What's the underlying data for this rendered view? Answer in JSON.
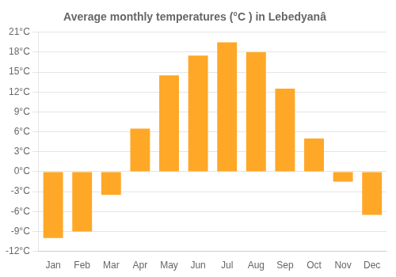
{
  "chart_data": {
    "type": "bar",
    "title": "Average monthly temperatures (°C ) in Lebedyanâ",
    "categories": [
      "Jan",
      "Feb",
      "Mar",
      "Apr",
      "May",
      "Jun",
      "Jul",
      "Aug",
      "Sep",
      "Oct",
      "Nov",
      "Dec"
    ],
    "values": [
      -10,
      -9,
      -3.5,
      6.5,
      14.5,
      17.5,
      19.5,
      18,
      12.5,
      5,
      -1.5,
      -6.5
    ],
    "color": "#FFA726",
    "ylim": [
      -12,
      21
    ],
    "yticks": [
      {
        "value": -12,
        "label": "-12°C"
      },
      {
        "value": -9,
        "label": "-9°C"
      },
      {
        "value": -6,
        "label": "-6°C"
      },
      {
        "value": -3,
        "label": "-3°C"
      },
      {
        "value": 0,
        "label": "0°C"
      },
      {
        "value": 3,
        "label": "3°C"
      },
      {
        "value": 6,
        "label": "6°C"
      },
      {
        "value": 9,
        "label": "9°C"
      },
      {
        "value": 12,
        "label": "12°C"
      },
      {
        "value": 15,
        "label": "15°C"
      },
      {
        "value": 18,
        "label": "18°C"
      },
      {
        "value": 21,
        "label": "21°C"
      }
    ],
    "grid": true
  }
}
